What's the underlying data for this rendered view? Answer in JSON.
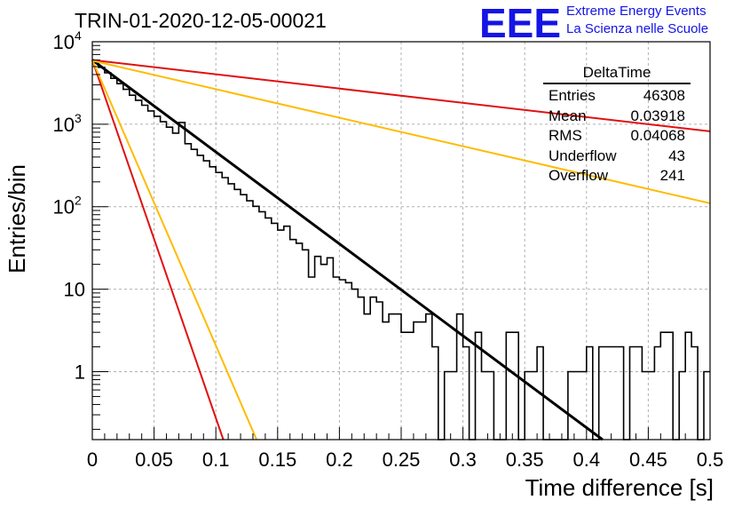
{
  "header": {
    "title": "TRIN-01-2020-12-05-00021",
    "logo_text": "EEE",
    "logo_line1": "Extreme Energy Events",
    "logo_line2": "La Scienza nelle Scuole"
  },
  "stats_box": {
    "title": "DeltaTime",
    "rows": [
      {
        "label": "Entries",
        "value": "46308"
      },
      {
        "label": "Mean",
        "value": "0.03918"
      },
      {
        "label": "RMS",
        "value": "0.04068"
      },
      {
        "label": "Underflow",
        "value": "43"
      },
      {
        "label": "Overflow",
        "value": "241"
      }
    ]
  },
  "chart_data": {
    "type": "line",
    "title": "TRIN-01-2020-12-05-00021",
    "xlabel": "Time difference [s]",
    "ylabel": "Entries/bin",
    "xlim": [
      0,
      0.5
    ],
    "ylim": [
      0.15,
      10000
    ],
    "yscale": "log",
    "grid": true,
    "x_ticks": [
      "0",
      "0.05",
      "0.1",
      "0.15",
      "0.2",
      "0.25",
      "0.3",
      "0.35",
      "0.4",
      "0.45",
      "0.5"
    ],
    "y_ticks": [
      {
        "value": 1,
        "label": "1"
      },
      {
        "value": 10,
        "label": "10"
      },
      {
        "value": 100,
        "label": "10",
        "exp": "2"
      },
      {
        "value": 1000,
        "label": "10",
        "exp": "3"
      },
      {
        "value": 10000,
        "label": "10",
        "exp": "4"
      }
    ],
    "colors": {
      "histogram": "#000000",
      "fit": "#000000",
      "red": "#e01010",
      "orange": "#ffbb00"
    },
    "histogram": {
      "bin_width": 0.005,
      "values": [
        5800,
        4900,
        4200,
        3600,
        3100,
        2650,
        2250,
        1950,
        1700,
        1450,
        1250,
        1070,
        920,
        780,
        1050,
        580,
        495,
        420,
        360,
        305,
        260,
        225,
        190,
        162,
        140,
        118,
        101,
        87,
        73,
        63,
        52,
        58,
        40,
        36,
        30,
        14,
        25,
        20,
        24,
        14,
        13,
        12,
        10,
        8,
        5,
        8,
        7,
        4,
        5,
        5,
        3,
        3,
        4,
        4,
        5,
        2,
        0,
        1,
        1,
        5,
        2,
        0,
        3,
        1,
        1,
        0,
        0,
        3,
        3,
        0,
        1,
        1,
        2,
        0,
        0,
        0,
        0,
        1,
        1,
        1,
        2,
        0,
        2,
        2,
        2,
        2,
        0,
        2,
        2,
        1,
        1,
        2,
        3,
        3,
        0,
        1,
        3,
        2,
        0,
        1
      ]
    },
    "curves": [
      {
        "color": "#000000",
        "x": [
          0,
          0.413
        ],
        "y": [
          6000,
          0.15
        ]
      },
      {
        "color": "#e01010",
        "x": [
          0,
          0.5
        ],
        "y": [
          6000,
          820
        ]
      },
      {
        "color": "#ffbb00",
        "x": [
          0,
          0.5
        ],
        "y": [
          5900,
          110
        ]
      },
      {
        "color": "#e01010",
        "x": [
          0,
          0.106
        ],
        "y": [
          6000,
          0.15
        ]
      },
      {
        "color": "#ffbb00",
        "x": [
          0,
          0.133
        ],
        "y": [
          6000,
          0.15
        ]
      }
    ]
  }
}
